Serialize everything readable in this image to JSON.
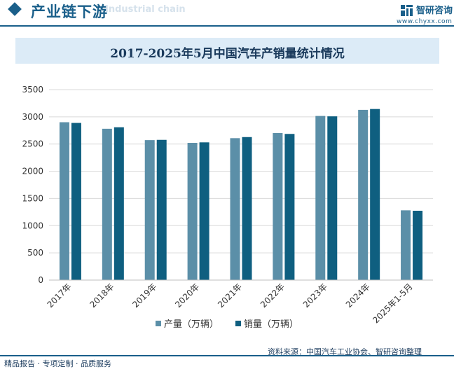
{
  "header": {
    "title": "产业链下游",
    "ghost_text": "Industrial chain",
    "logo_name": "智研咨询",
    "logo_url": "www.chyxx.com"
  },
  "footer": {
    "left": "精品报告 · 专项定制 · 品质服务",
    "source": "资料来源：中国汽车工业协会、智研咨询整理"
  },
  "colors": {
    "accent": "#1a5f8a",
    "production": "#5b8fa8",
    "sales": "#0f5f80",
    "title_bg": "#dcebf7"
  },
  "chart_data": {
    "type": "bar",
    "title": "2017-2025年5月中国汽车产销量统计情况",
    "categories": [
      "2017年",
      "2018年",
      "2019年",
      "2020年",
      "2021年",
      "2022年",
      "2023年",
      "2024年",
      "2025年1-5月"
    ],
    "series": [
      {
        "name": "产量（万辆）",
        "values": [
          2901,
          2781,
          2572,
          2522,
          2608,
          2702,
          3016,
          3128,
          1282
        ]
      },
      {
        "name": "销量（万辆）",
        "values": [
          2888,
          2808,
          2577,
          2531,
          2628,
          2686,
          3009,
          3144,
          1274
        ]
      }
    ],
    "ylim": [
      0,
      3500
    ],
    "yticks": [
      0,
      500,
      1000,
      1500,
      2000,
      2500,
      3000,
      3500
    ],
    "xlabel": "",
    "ylabel": "",
    "grid": true,
    "legend": "bottom-center"
  }
}
